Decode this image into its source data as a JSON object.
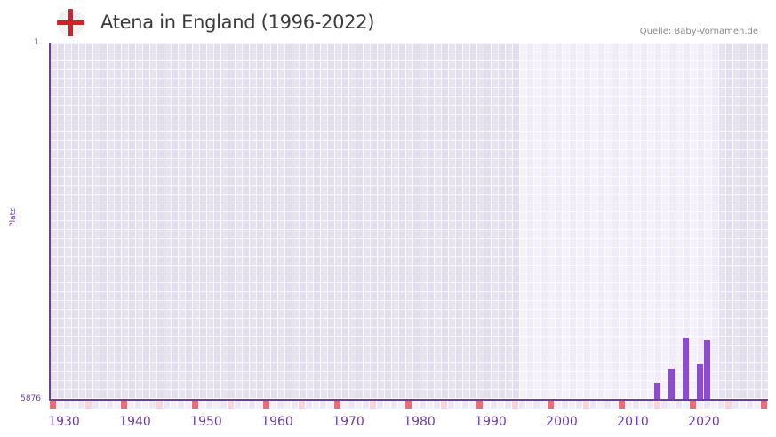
{
  "header": {
    "title": "Atena in England (1996-2022)",
    "source": "Quelle: Baby-Vornamen.de",
    "flag_icon": "england-flag-icon"
  },
  "axes": {
    "y_label": "Platz",
    "y_top": "1",
    "y_bottom": "5876",
    "x_ticks": [
      "1930",
      "1940",
      "1950",
      "1960",
      "1970",
      "1980",
      "1990",
      "2000",
      "2010",
      "2020"
    ]
  },
  "colors": {
    "bar": "#8a4fc8",
    "axis": "#6b3fa0",
    "bg_out_range": "#e3def0",
    "bg_in_range": "#f1eefa",
    "marker_decade": "#e0717c",
    "marker_half": "#f5d6dd"
  },
  "chart_data": {
    "type": "bar",
    "title": "Atena in England (1996-2022)",
    "xlabel": "",
    "ylabel": "Platz",
    "y_inverted": true,
    "ylim": [
      5876,
      1
    ],
    "xlim": [
      1928,
      2028
    ],
    "data_range": [
      1994,
      2021
    ],
    "x": [
      2013,
      2015,
      2017,
      2019,
      2020
    ],
    "values": [
      5600,
      5370,
      4850,
      5290,
      4900
    ],
    "x_ticks": [
      1930,
      1940,
      1950,
      1960,
      1970,
      1980,
      1990,
      2000,
      2010,
      2020
    ],
    "grid": true,
    "source": "Quelle: Baby-Vornamen.de"
  }
}
